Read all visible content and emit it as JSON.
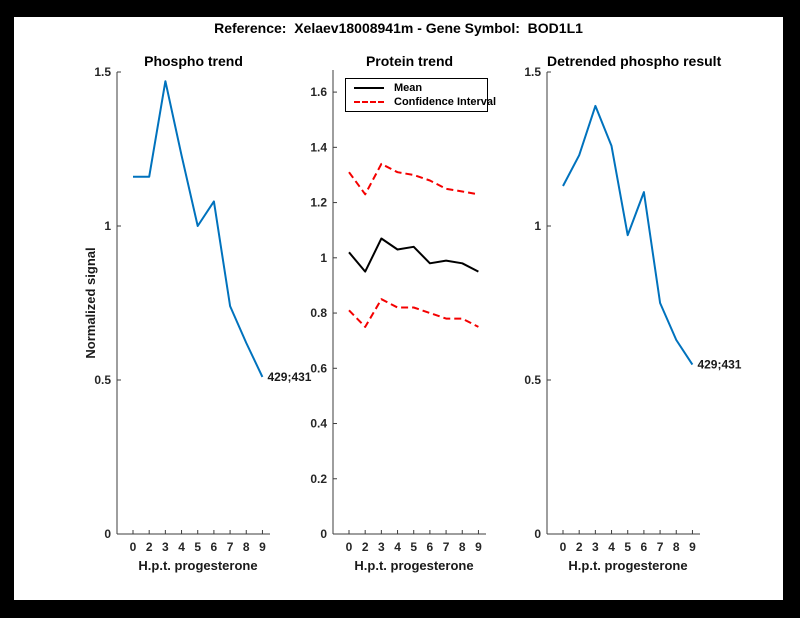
{
  "figure": {
    "title": "Reference:  Xelaev18008941m - Gene Symbol:  BOD1L1",
    "frame_color": "#000000",
    "canvas_color": "#ffffff",
    "accent_blue": "#0072BD",
    "accent_red": "#f40000",
    "accent_black": "#000000"
  },
  "chart_data": [
    {
      "type": "line",
      "title": "Phospho trend",
      "xlabel": "H.p.t. progesterone",
      "ylabel": "Normalized signal",
      "x_tick_labels": [
        "0",
        "2",
        "3",
        "4",
        "5",
        "6",
        "7",
        "8",
        "9"
      ],
      "y_ticks": [
        0,
        0.5,
        1,
        1.5
      ],
      "y_tick_labels": [
        "0",
        "0.5",
        "1",
        "1.5"
      ],
      "ylim": [
        0,
        1.5
      ],
      "grid": false,
      "series": [
        {
          "name": "phospho-signal",
          "color": "#0072BD",
          "style": "solid",
          "values": [
            1.16,
            1.16,
            1.47,
            1.23,
            1.0,
            1.08,
            0.74,
            0.62,
            0.51
          ]
        }
      ],
      "annotation": {
        "text": "429;431",
        "at_index": 8
      }
    },
    {
      "type": "line",
      "title": "Protein trend",
      "xlabel": "H.p.t. progesterone",
      "ylabel": "",
      "x_tick_labels": [
        "0",
        "2",
        "3",
        "4",
        "5",
        "6",
        "7",
        "8",
        "9"
      ],
      "y_ticks": [
        0,
        0.2,
        0.4,
        0.6,
        0.8,
        1,
        1.2,
        1.4,
        1.6
      ],
      "y_tick_labels": [
        "0",
        "0.2",
        "0.4",
        "0.6",
        "0.8",
        "1",
        "1.2",
        "1.4",
        "1.6"
      ],
      "ylim": [
        0,
        1.68
      ],
      "grid": false,
      "legend": {
        "position": "top-left",
        "items": [
          {
            "label": "Mean",
            "color": "#000000",
            "style": "solid"
          },
          {
            "label": "Confidence Interval",
            "color": "#f40000",
            "style": "dashed"
          }
        ]
      },
      "series": [
        {
          "name": "mean",
          "color": "#000000",
          "style": "solid",
          "values": [
            1.02,
            0.95,
            1.07,
            1.03,
            1.04,
            0.98,
            0.99,
            0.98,
            0.95
          ]
        },
        {
          "name": "confidence-upper",
          "color": "#f40000",
          "style": "dashed",
          "values": [
            1.31,
            1.23,
            1.34,
            1.31,
            1.3,
            1.28,
            1.25,
            1.24,
            1.23
          ]
        },
        {
          "name": "confidence-lower",
          "color": "#f40000",
          "style": "dashed",
          "values": [
            0.81,
            0.75,
            0.85,
            0.82,
            0.82,
            0.8,
            0.78,
            0.78,
            0.75
          ]
        }
      ]
    },
    {
      "type": "line",
      "title": "Detrended phospho result",
      "xlabel": "H.p.t. progesterone",
      "ylabel": "",
      "x_tick_labels": [
        "0",
        "2",
        "3",
        "4",
        "5",
        "6",
        "7",
        "8",
        "9"
      ],
      "y_ticks": [
        0,
        0.5,
        1,
        1.5
      ],
      "y_tick_labels": [
        "0",
        "0.5",
        "1",
        "1.5"
      ],
      "ylim": [
        0,
        1.5
      ],
      "grid": false,
      "series": [
        {
          "name": "detrended-phospho",
          "color": "#0072BD",
          "style": "solid",
          "values": [
            1.13,
            1.23,
            1.39,
            1.26,
            0.97,
            1.11,
            0.75,
            0.63,
            0.55
          ]
        }
      ],
      "annotation": {
        "text": "429;431",
        "at_index": 8
      }
    }
  ]
}
